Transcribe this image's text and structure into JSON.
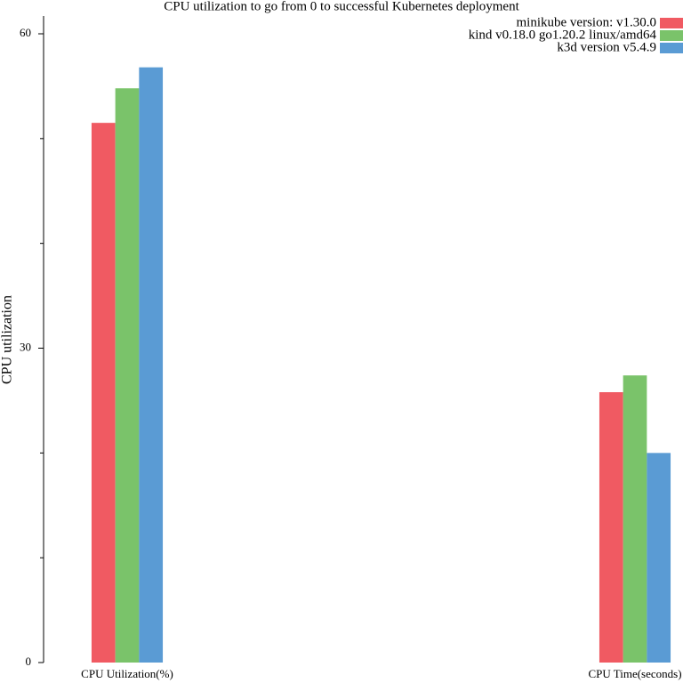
{
  "chart_data": {
    "type": "bar",
    "title": "CPU utilization to go from 0 to successful Kubernetes deployment",
    "y_label": "CPU utilization",
    "categories": [
      "CPU Utilization(%)",
      "CPU Time(seconds)"
    ],
    "series": [
      {
        "name": "minikube version: v1.30.0",
        "color": "#f05a62",
        "values": [
          51.5,
          25.8
        ]
      },
      {
        "name": "kind v0.18.0 go1.20.2 linux/amd64",
        "color": "#7ac36a",
        "values": [
          54.8,
          27.4
        ]
      },
      {
        "name": "k3d version v5.4.9",
        "color": "#5a9bd4",
        "values": [
          56.8,
          20.0
        ]
      }
    ],
    "ylim": [
      0,
      60
    ],
    "yticks": [
      0,
      30,
      60
    ],
    "yminorticks": [
      10,
      20,
      40,
      50
    ],
    "legend": "top-right",
    "grid": false
  }
}
